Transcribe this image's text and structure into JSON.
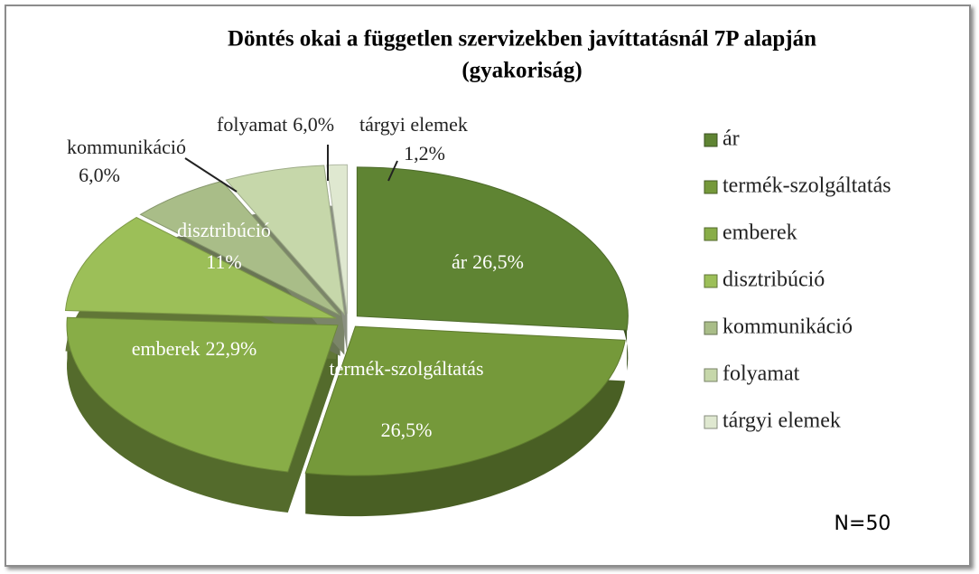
{
  "chart_data": {
    "type": "pie",
    "title": "Döntés okai a független szervizekben javíttatásnál 7P alapján",
    "subtitle": "(gyakoriság)",
    "categories": [
      "ár",
      "termék-szolgáltatás",
      "emberek",
      "disztribúció",
      "kommunikáció",
      "folyamat",
      "tárgyi elemek"
    ],
    "values": [
      26.5,
      26.5,
      22.9,
      11,
      6.0,
      6.0,
      1.2
    ],
    "value_labels": [
      "26,5%",
      "26,5%",
      "22,9%",
      "11%",
      "6,0%",
      "6,0%",
      "1,2%"
    ],
    "colors": [
      "#5f8433",
      "#75993a",
      "#88ad47",
      "#9cbf58",
      "#a9bd88",
      "#c6d7aa",
      "#dfe8d0"
    ],
    "legend": "right",
    "annotation": "N=50"
  }
}
